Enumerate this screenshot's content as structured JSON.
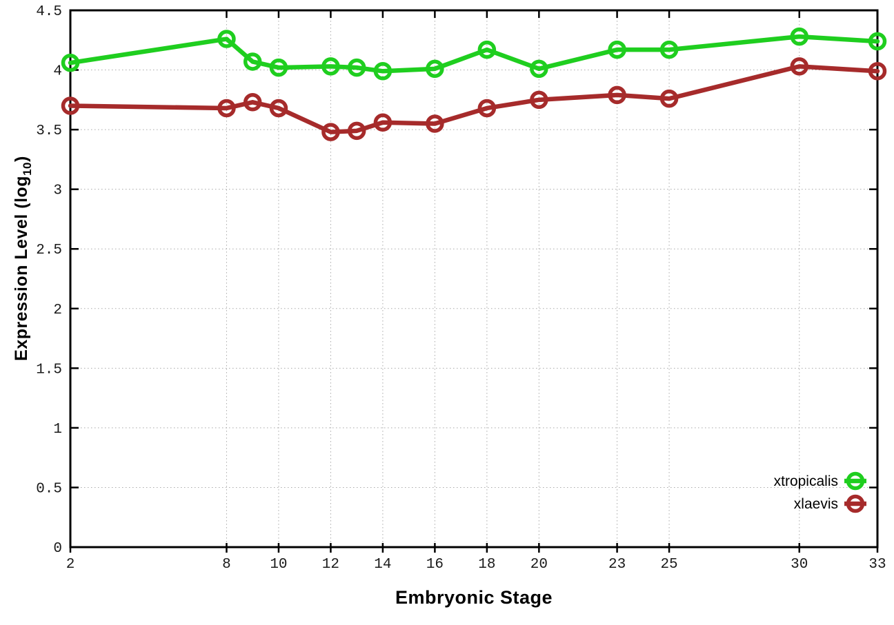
{
  "chart_data": {
    "type": "line",
    "x": [
      2,
      8,
      9,
      10,
      12,
      13,
      14,
      16,
      18,
      20,
      23,
      25,
      30,
      33
    ],
    "series": [
      {
        "name": "xtropicalis",
        "color": "#1fce1f",
        "values": [
          4.06,
          4.26,
          4.07,
          4.02,
          4.03,
          4.02,
          3.99,
          4.01,
          4.17,
          4.01,
          4.17,
          4.17,
          4.28,
          4.24
        ]
      },
      {
        "name": "xlaevis",
        "color": "#a62b2b",
        "values": [
          3.7,
          3.68,
          3.73,
          3.68,
          3.48,
          3.49,
          3.56,
          3.55,
          3.68,
          3.75,
          3.79,
          3.76,
          4.03,
          3.99
        ]
      }
    ],
    "xlabel": "Embryonic Stage",
    "ylabel": "Expression Level (log10)",
    "ylabel_parts": {
      "prefix": "Expression Level (log",
      "sub": "10",
      "suffix": ")"
    },
    "xlim": [
      2,
      33
    ],
    "ylim": [
      0,
      4.5
    ],
    "xticks": [
      2,
      8,
      10,
      12,
      14,
      16,
      18,
      20,
      23,
      25,
      30,
      33
    ],
    "yticks": [
      0,
      0.5,
      1,
      1.5,
      2,
      2.5,
      3,
      3.5,
      4,
      4.5
    ],
    "grid": true,
    "legend_position": "bottom-right-inside",
    "legend": [
      "xtropicalis",
      "xlaevis"
    ],
    "marker": "open-circle",
    "background_color": "#ffffff",
    "grid_color": "#a8a8a8",
    "border_color": "#000000",
    "tick_label_color": "#1a1a1a"
  }
}
